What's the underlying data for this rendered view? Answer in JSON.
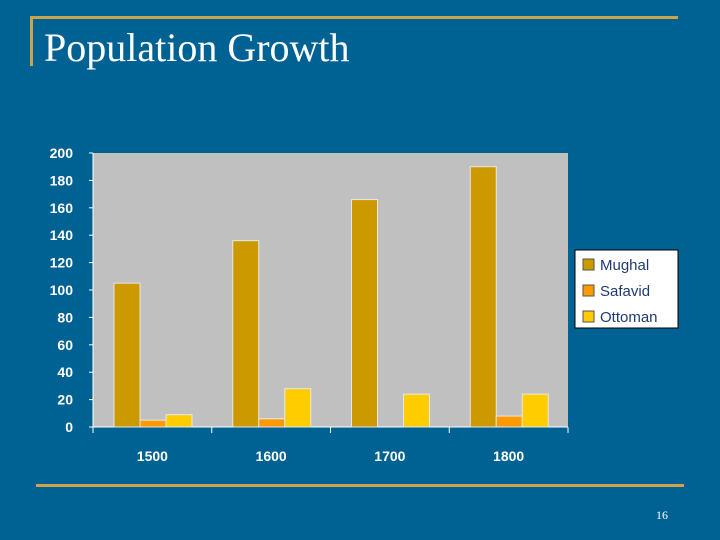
{
  "slide": {
    "title": "Population Growth",
    "page_number": "16"
  },
  "colors": {
    "background": "#006193",
    "rule": "#c9a44a",
    "plot_area": "#c0c0c0",
    "Mughal": "#cc9900",
    "Safavid": "#ff9900",
    "Ottoman": "#ffcc00"
  },
  "chart_data": {
    "type": "bar",
    "title": "",
    "xlabel": "",
    "ylabel": "",
    "categories": [
      "1500",
      "1600",
      "1700",
      "1800"
    ],
    "series": [
      {
        "name": "Mughal",
        "values": [
          105,
          136,
          166,
          190
        ]
      },
      {
        "name": "Safavid",
        "values": [
          5,
          6,
          0,
          8
        ]
      },
      {
        "name": "Ottoman",
        "values": [
          9,
          28,
          24,
          24
        ]
      }
    ],
    "ylim": [
      0,
      200
    ],
    "yticks": [
      "0",
      "20",
      "40",
      "60",
      "80",
      "100",
      "120",
      "140",
      "160",
      "180",
      "200"
    ],
    "grid": false,
    "legend_position": "right"
  }
}
